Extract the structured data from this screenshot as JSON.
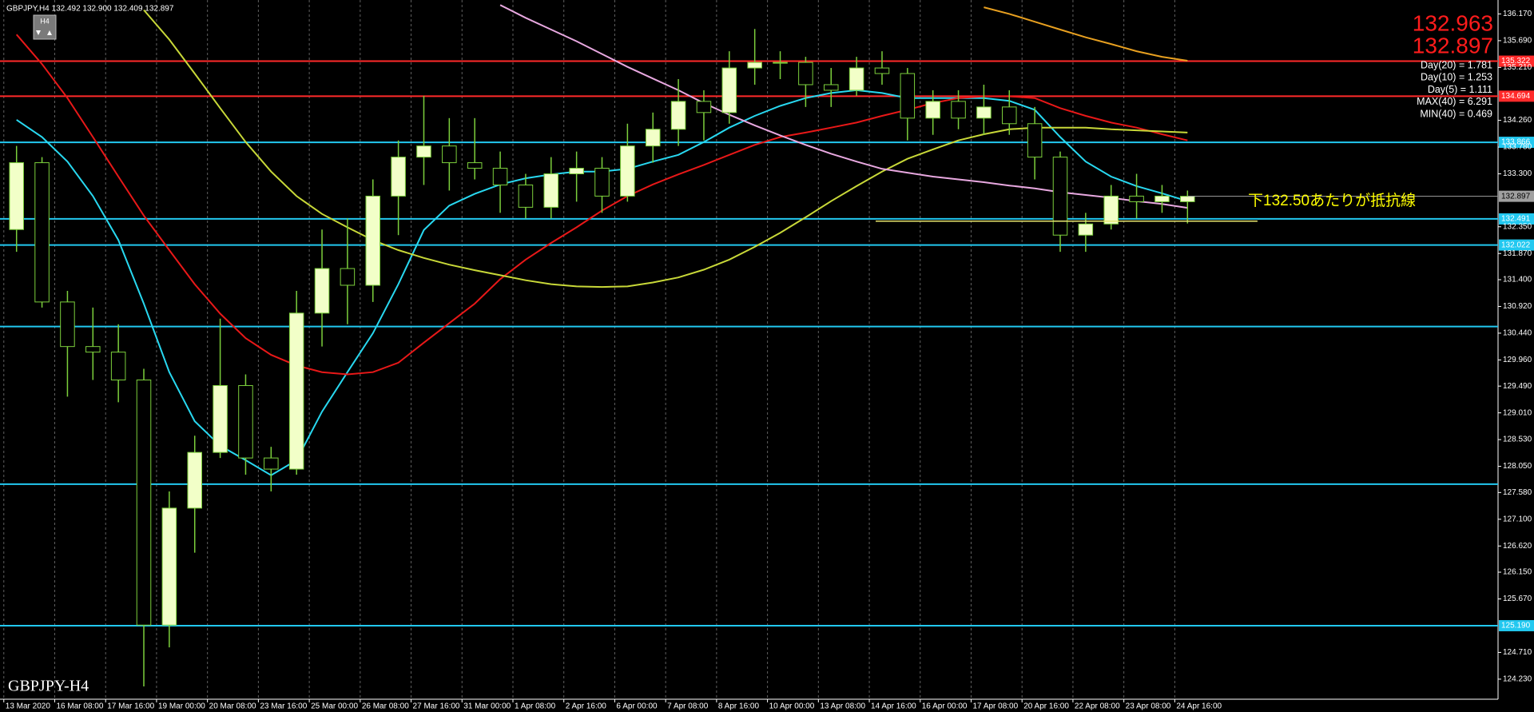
{
  "chart_data": {
    "type": "candlestick",
    "header": "GBPJPY,H4  132.492 132.900 132.409 132.897",
    "timeframe_button": "H4",
    "watermark": "GBPJPY-H4",
    "price_box": [
      "132.963",
      "132.897"
    ],
    "stats": [
      "Day(20) = 1.781",
      "Day(10) = 1.253",
      "Day(5) = 1.111",
      "MAX(40) = 6.291",
      "MIN(40) = 0.469"
    ],
    "annotation": "下132.50あたりが抵抗線",
    "up_color": "#f2ffc8",
    "down_color": "#000000",
    "wick_color": "#7ccf3c",
    "grid": "x",
    "xlim": [
      -0.6,
      234.8
    ],
    "ylim": [
      123.87,
      136.42
    ],
    "xticks": [
      {
        "value": 0,
        "label": "13 Mar 2020"
      },
      {
        "value": 8,
        "label": "16 Mar 08:00"
      },
      {
        "value": 16,
        "label": "17 Mar 16:00"
      },
      {
        "value": 24,
        "label": "19 Mar 00:00"
      },
      {
        "value": 32,
        "label": "20 Mar 08:00"
      },
      {
        "value": 40,
        "label": "23 Mar 16:00"
      },
      {
        "value": 48,
        "label": "25 Mar 00:00"
      },
      {
        "value": 56,
        "label": "26 Mar 08:00"
      },
      {
        "value": 64,
        "label": "27 Mar 16:00"
      },
      {
        "value": 72,
        "label": "31 Mar 00:00"
      },
      {
        "value": 80,
        "label": "1 Apr 08:00"
      },
      {
        "value": 88,
        "label": "2 Apr 16:00"
      },
      {
        "value": 96,
        "label": "6 Apr 00:00"
      },
      {
        "value": 104,
        "label": "7 Apr 08:00"
      },
      {
        "value": 112,
        "label": "8 Apr 16:00"
      },
      {
        "value": 120,
        "label": "10 Apr 00:00"
      },
      {
        "value": 128,
        "label": "13 Apr 08:00"
      },
      {
        "value": 136,
        "label": "14 Apr 16:00"
      },
      {
        "value": 144,
        "label": "16 Apr 00:00"
      },
      {
        "value": 152,
        "label": "17 Apr 08:00"
      },
      {
        "value": 160,
        "label": "20 Apr 16:00"
      },
      {
        "value": 168,
        "label": "22 Apr 08:00"
      },
      {
        "value": 176,
        "label": "23 Apr 08:00"
      },
      {
        "value": 184,
        "label": "24 Apr 16:00"
      }
    ],
    "yticks": [
      {
        "value": 136.17,
        "label": "136.170"
      },
      {
        "value": 135.69,
        "label": "135.690"
      },
      {
        "value": 135.21,
        "label": "135.210"
      },
      {
        "value": 134.26,
        "label": "134.260"
      },
      {
        "value": 133.78,
        "label": "133.780"
      },
      {
        "value": 133.3,
        "label": "133.300"
      },
      {
        "value": 132.35,
        "label": "132.350"
      },
      {
        "value": 131.87,
        "label": "131.870"
      },
      {
        "value": 131.4,
        "label": "131.400"
      },
      {
        "value": 130.92,
        "label": "130.920"
      },
      {
        "value": 130.44,
        "label": "130.440"
      },
      {
        "value": 129.96,
        "label": "129.960"
      },
      {
        "value": 129.49,
        "label": "129.490"
      },
      {
        "value": 129.01,
        "label": "129.010"
      },
      {
        "value": 128.53,
        "label": "128.530"
      },
      {
        "value": 128.05,
        "label": "128.050"
      },
      {
        "value": 127.58,
        "label": "127.580"
      },
      {
        "value": 127.1,
        "label": "127.100"
      },
      {
        "value": 126.62,
        "label": "126.620"
      },
      {
        "value": 126.15,
        "label": "126.150"
      },
      {
        "value": 125.67,
        "label": "125.670"
      },
      {
        "value": 124.71,
        "label": "124.710"
      },
      {
        "value": 124.23,
        "label": "124.230"
      }
    ],
    "levels": [
      {
        "value": 135.322,
        "label": "135.322",
        "color": "#ff2a2a"
      },
      {
        "value": 134.694,
        "label": "134.694",
        "color": "#ff2a2a"
      },
      {
        "value": 133.866,
        "label": "133.866",
        "color": "#22c8f0"
      },
      {
        "value": 132.491,
        "label": "132.491",
        "color": "#22c8f0"
      },
      {
        "value": 132.022,
        "label": "132.022",
        "color": "#22c8f0"
      },
      {
        "value": 130.56,
        "color": "#22c8f0"
      },
      {
        "value": 127.73,
        "color": "#22c8f0"
      },
      {
        "value": 125.19,
        "label": "125.190",
        "color": "#22c8f0"
      }
    ],
    "current_price": {
      "value": 132.897,
      "label": "132.897",
      "color": "#a0a0a0"
    },
    "trendline": {
      "value": 132.45,
      "x": [
        137,
        197
      ],
      "color": "#e8e870"
    },
    "x": [
      2,
      6,
      10,
      14,
      18,
      22,
      26,
      30,
      34,
      38,
      42,
      46,
      50,
      54,
      58,
      62,
      66,
      70,
      74,
      78,
      82,
      86,
      90,
      94,
      98,
      102,
      106,
      110,
      114,
      118,
      122,
      126,
      130,
      134,
      138,
      142,
      146,
      150,
      154,
      158,
      162,
      166,
      170,
      174,
      178,
      182,
      186
    ],
    "open": [
      132.3,
      133.5,
      131.0,
      130.2,
      130.1,
      129.6,
      125.2,
      127.3,
      128.3,
      129.5,
      128.2,
      128.0,
      130.8,
      131.6,
      131.3,
      132.9,
      133.6,
      133.8,
      133.5,
      133.4,
      133.1,
      132.7,
      133.3,
      133.4,
      132.9,
      133.8,
      134.1,
      134.6,
      134.4,
      135.2,
      135.3,
      135.3,
      134.9,
      134.8,
      135.2,
      135.1,
      134.3,
      134.6,
      134.3,
      134.5,
      134.2,
      133.6,
      132.2,
      132.4,
      132.9,
      132.8,
      132.8
    ],
    "high": [
      133.8,
      133.6,
      131.2,
      130.9,
      130.6,
      129.8,
      127.6,
      128.6,
      130.7,
      129.7,
      128.4,
      131.2,
      132.3,
      132.5,
      133.2,
      133.9,
      134.7,
      134.3,
      134.3,
      133.7,
      133.3,
      133.6,
      133.7,
      133.6,
      134.2,
      134.4,
      135.0,
      134.8,
      135.5,
      135.9,
      135.5,
      135.4,
      135.2,
      135.4,
      135.5,
      135.2,
      134.8,
      134.8,
      134.9,
      134.8,
      134.5,
      133.7,
      132.6,
      133.1,
      133.3,
      133.1,
      133.0
    ],
    "low": [
      131.9,
      130.9,
      129.3,
      129.6,
      129.2,
      124.1,
      124.8,
      126.5,
      128.2,
      127.9,
      127.6,
      127.9,
      130.2,
      130.6,
      131.0,
      132.2,
      133.1,
      133.0,
      133.2,
      132.6,
      132.5,
      132.5,
      132.8,
      132.6,
      132.8,
      133.5,
      133.8,
      133.9,
      134.2,
      134.9,
      135.0,
      134.5,
      134.5,
      134.7,
      134.9,
      133.9,
      134.0,
      134.1,
      134.0,
      134.0,
      133.2,
      131.9,
      131.9,
      132.3,
      132.5,
      132.6,
      132.409
    ],
    "close": [
      133.5,
      131.0,
      130.2,
      130.1,
      129.6,
      125.2,
      127.3,
      128.3,
      129.5,
      128.2,
      128.0,
      130.8,
      131.6,
      131.3,
      132.9,
      133.6,
      133.8,
      133.5,
      133.4,
      133.1,
      132.7,
      133.3,
      133.4,
      132.9,
      133.8,
      134.1,
      134.6,
      134.4,
      135.2,
      135.3,
      135.3,
      134.9,
      134.8,
      135.2,
      135.1,
      134.3,
      134.6,
      134.3,
      134.5,
      134.2,
      133.6,
      132.2,
      132.4,
      132.9,
      132.8,
      132.9,
      132.897
    ],
    "overlays": [
      {
        "color": "#28d8f0",
        "values": [
          134.27,
          133.96,
          133.52,
          132.9,
          132.11,
          130.97,
          129.74,
          128.86,
          128.42,
          128.16,
          127.89,
          128.16,
          129.03,
          129.74,
          130.44,
          131.32,
          132.29,
          132.73,
          132.94,
          133.11,
          133.22,
          133.29,
          133.34,
          133.34,
          133.39,
          133.52,
          133.64,
          133.87,
          134.13,
          134.34,
          134.52,
          134.66,
          134.75,
          134.8,
          134.75,
          134.66,
          134.66,
          134.66,
          134.66,
          134.61,
          134.45,
          133.96,
          133.52,
          133.25,
          133.08,
          132.95,
          132.81
        ]
      },
      {
        "color": "#e81818",
        "values": [
          135.8,
          135.27,
          134.66,
          133.96,
          133.25,
          132.55,
          131.93,
          131.32,
          130.79,
          130.35,
          130.05,
          129.86,
          129.74,
          129.7,
          129.74,
          129.91,
          130.27,
          130.62,
          130.97,
          131.41,
          131.76,
          132.06,
          132.34,
          132.64,
          132.9,
          133.11,
          133.29,
          133.46,
          133.64,
          133.82,
          133.96,
          134.04,
          134.13,
          134.22,
          134.34,
          134.45,
          134.57,
          134.66,
          134.69,
          134.69,
          134.66,
          134.48,
          134.34,
          134.22,
          134.13,
          134.01,
          133.9
        ]
      },
      {
        "color": "#c8d838",
        "values": [
          null,
          null,
          null,
          null,
          null,
          136.24,
          135.71,
          135.1,
          134.48,
          133.87,
          133.34,
          132.9,
          132.58,
          132.34,
          132.11,
          131.93,
          131.79,
          131.67,
          131.57,
          131.48,
          131.39,
          131.32,
          131.28,
          131.27,
          131.28,
          131.35,
          131.44,
          131.58,
          131.76,
          131.99,
          132.24,
          132.52,
          132.81,
          133.08,
          133.34,
          133.57,
          133.74,
          133.9,
          134.01,
          134.1,
          134.13,
          134.13,
          134.13,
          134.1,
          134.08,
          134.06,
          134.04
        ]
      },
      {
        "color": "#e8a8e0",
        "values": [
          null,
          null,
          null,
          null,
          null,
          null,
          null,
          null,
          null,
          null,
          null,
          null,
          null,
          null,
          null,
          null,
          null,
          null,
          null,
          136.33,
          136.1,
          135.89,
          135.68,
          135.45,
          135.22,
          135.01,
          134.8,
          134.57,
          134.36,
          134.17,
          133.99,
          133.82,
          133.66,
          133.52,
          133.39,
          133.32,
          133.25,
          133.2,
          133.15,
          133.09,
          133.04,
          132.97,
          132.92,
          132.87,
          132.81,
          132.76,
          132.69
        ]
      },
      {
        "color": "#e8a020",
        "values": [
          null,
          null,
          null,
          null,
          null,
          null,
          null,
          null,
          null,
          null,
          null,
          null,
          null,
          null,
          null,
          null,
          null,
          null,
          null,
          null,
          null,
          null,
          null,
          null,
          null,
          null,
          null,
          null,
          null,
          null,
          null,
          null,
          null,
          null,
          null,
          null,
          null,
          null,
          136.29,
          136.17,
          136.03,
          135.89,
          135.75,
          135.63,
          135.5,
          135.4,
          135.33
        ]
      }
    ]
  }
}
